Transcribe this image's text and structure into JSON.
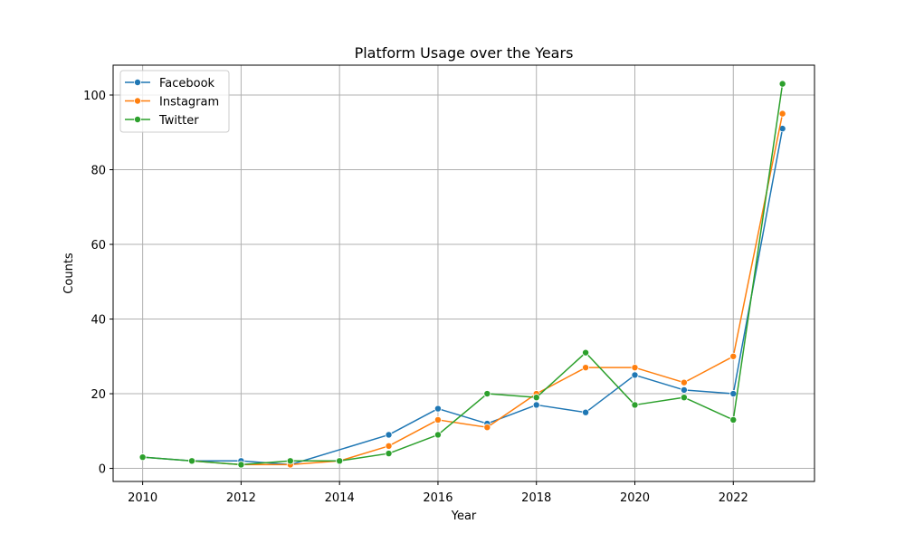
{
  "chart_data": {
    "type": "line",
    "title": "Platform Usage over the Years",
    "xlabel": "Year",
    "ylabel": "Counts",
    "xlim": [
      2009.4,
      2023.65
    ],
    "ylim": [
      -3.5,
      108
    ],
    "xticks": [
      2010,
      2012,
      2014,
      2016,
      2018,
      2020,
      2022
    ],
    "yticks": [
      0,
      20,
      40,
      60,
      80,
      100
    ],
    "grid": true,
    "legend_position": "top-left",
    "series": [
      {
        "name": "Facebook",
        "color": "#1f77b4",
        "points": [
          [
            2010,
            3
          ],
          [
            2011,
            2
          ],
          [
            2012,
            2
          ],
          [
            2013,
            1
          ],
          [
            2015,
            9
          ],
          [
            2016,
            16
          ],
          [
            2017,
            12
          ],
          [
            2018,
            17
          ],
          [
            2019,
            15
          ],
          [
            2020,
            25
          ],
          [
            2021,
            21
          ],
          [
            2022,
            20
          ],
          [
            2023,
            91
          ]
        ]
      },
      {
        "name": "Instagram",
        "color": "#ff7f0e",
        "points": [
          [
            2011,
            2
          ],
          [
            2012,
            1
          ],
          [
            2013,
            1
          ],
          [
            2014,
            2
          ],
          [
            2015,
            6
          ],
          [
            2016,
            13
          ],
          [
            2017,
            11
          ],
          [
            2018,
            20
          ],
          [
            2019,
            27
          ],
          [
            2020,
            27
          ],
          [
            2021,
            23
          ],
          [
            2022,
            30
          ],
          [
            2023,
            95
          ]
        ]
      },
      {
        "name": "Twitter",
        "color": "#2ca02c",
        "points": [
          [
            2010,
            3
          ],
          [
            2011,
            2
          ],
          [
            2012,
            1
          ],
          [
            2013,
            2
          ],
          [
            2014,
            2
          ],
          [
            2015,
            4
          ],
          [
            2016,
            9
          ],
          [
            2017,
            20
          ],
          [
            2018,
            19
          ],
          [
            2019,
            31
          ],
          [
            2020,
            17
          ],
          [
            2021,
            19
          ],
          [
            2022,
            13
          ],
          [
            2023,
            103
          ]
        ]
      }
    ]
  }
}
